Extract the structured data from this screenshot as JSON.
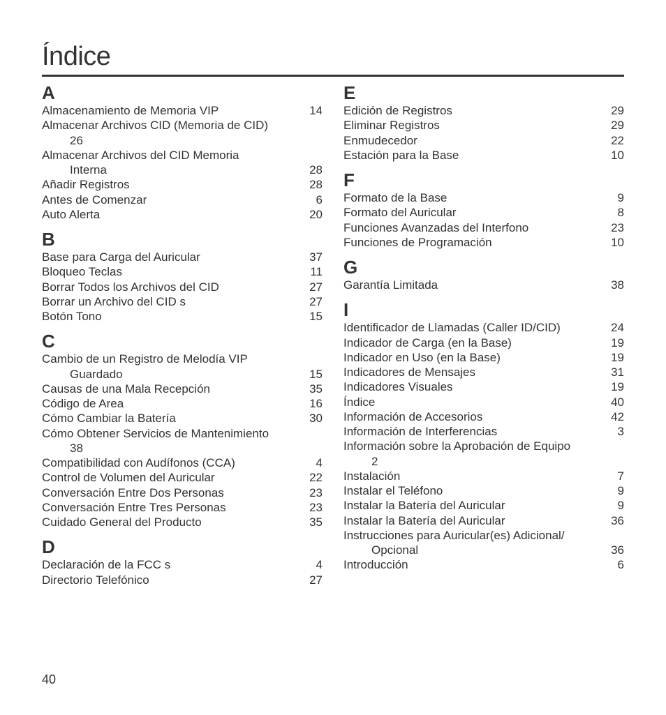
{
  "title": "Índice",
  "page_number": "40",
  "left_sections": [
    {
      "letter": "A",
      "items": [
        {
          "text": "Almacenamiento de Memoria VIP",
          "page": "14"
        },
        {
          "text": "Almacenar Archivos CID (Memoria de CID)",
          "wrap_page": "26"
        },
        {
          "text": "Almacenar Archivos del CID Memoria",
          "cont": "Interna",
          "page": "28"
        },
        {
          "text": "Añadir Registros",
          "page": "28"
        },
        {
          "text": "Antes de Comenzar",
          "page": "6"
        },
        {
          "text": "Auto Alerta",
          "page": "20"
        }
      ]
    },
    {
      "letter": "B",
      "items": [
        {
          "text": "Base para Carga del Auricular",
          "page": "37"
        },
        {
          "text": "Bloqueo Teclas",
          "page": "11"
        },
        {
          "text": "Borrar Todos los Archivos del CID",
          "page": "27"
        },
        {
          "text": "Borrar un Archivo del CID s",
          "page": "27"
        },
        {
          "text": "Botón Tono",
          "page": "15"
        }
      ]
    },
    {
      "letter": "C",
      "items": [
        {
          "text": "Cambio de un Registro de Melodía VIP",
          "cont": "Guardado",
          "page": "15"
        },
        {
          "text": "Causas de una Mala Recepción",
          "page": "35"
        },
        {
          "text": "Código de Area",
          "page": "16"
        },
        {
          "text": "Cómo Cambiar la Batería",
          "page": "30"
        },
        {
          "text": "Cómo Obtener Servicios de Mantenimiento",
          "wrap_page": "38"
        },
        {
          "text": "Compatibilidad con Audífonos (CCA)",
          "page": "4"
        },
        {
          "text": "Control de Volumen del Auricular",
          "page": "22"
        },
        {
          "text": "Conversación Entre Dos Personas",
          "page": "23"
        },
        {
          "text": "Conversación Entre Tres Personas",
          "page": "23"
        },
        {
          "text": "Cuidado General del Producto",
          "page": "35"
        }
      ]
    },
    {
      "letter": "D",
      "items": [
        {
          "text": "Declaración de la FCC s",
          "page": "4"
        },
        {
          "text": "Directorio Telefónico",
          "page": "27"
        }
      ]
    }
  ],
  "right_sections": [
    {
      "letter": "E",
      "items": [
        {
          "text": "Edición de Registros",
          "page": "29"
        },
        {
          "text": "Eliminar Registros",
          "page": "29"
        },
        {
          "text": "Enmudecedor",
          "page": "22"
        },
        {
          "text": "Estación para la Base",
          "page": "10"
        }
      ]
    },
    {
      "letter": "F",
      "items": [
        {
          "text": "Formato de la Base",
          "page": "9"
        },
        {
          "text": "Formato del Auricular",
          "page": "8"
        },
        {
          "text": "Funciones Avanzadas del Interfono",
          "page": "23"
        },
        {
          "text": "Funciones de Programación",
          "page": "10"
        }
      ]
    },
    {
      "letter": "G",
      "items": [
        {
          "text": "Garantía Limitada",
          "page": "38"
        }
      ]
    },
    {
      "letter": "I",
      "items": [
        {
          "text": "Identificador de Llamadas (Caller ID/CID)",
          "page": "24"
        },
        {
          "text": "Indicador de Carga (en la Base)",
          "page": "19"
        },
        {
          "text": "Indicador en Uso (en la Base)",
          "page": "19"
        },
        {
          "text": "Indicadores de Mensajes",
          "page": "31"
        },
        {
          "text": "Indicadores Visuales",
          "page": "19"
        },
        {
          "text": "Índice",
          "page": "40"
        },
        {
          "text": "Información de Accesorios",
          "page": "42"
        },
        {
          "text": "Información de Interferencias",
          "page": "3"
        },
        {
          "text": "Información sobre la Aprobación de Equipo",
          "wrap_page": "2"
        },
        {
          "text": "Instalación",
          "page": "7"
        },
        {
          "text": "Instalar el Teléfono",
          "page": "9"
        },
        {
          "text": "Instalar la Batería del Auricular",
          "page": "9"
        },
        {
          "text": "Instalar la Batería del Auricular",
          "page": "36"
        },
        {
          "text": "Instrucciones para Auricular(es) Adicional/",
          "cont": "Opcional",
          "page": "36"
        },
        {
          "text": "Introducción",
          "page": "6"
        }
      ]
    }
  ]
}
